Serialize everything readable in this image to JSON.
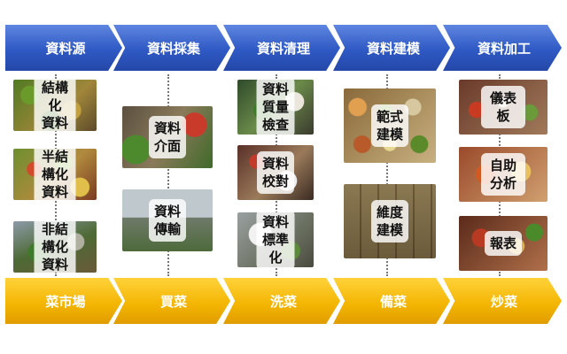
{
  "data_pipeline": [
    {
      "label": "資料源"
    },
    {
      "label": "資料採集"
    },
    {
      "label": "資料清理"
    },
    {
      "label": "資料建模"
    },
    {
      "label": "資料加工"
    }
  ],
  "cooking_pipeline": [
    {
      "label": "菜市場"
    },
    {
      "label": "買菜"
    },
    {
      "label": "洗菜"
    },
    {
      "label": "備菜"
    },
    {
      "label": "炒菜"
    }
  ],
  "columns": [
    {
      "items": [
        "結構化\n資料",
        "半結構化\n資料",
        "非結構化\n資料"
      ]
    },
    {
      "items": [
        "資料\n介面",
        "資料\n傳輸"
      ]
    },
    {
      "items": [
        "資料質量\n檢查",
        "資料\n校對",
        "資料\n標準化"
      ]
    },
    {
      "items": [
        "範式\n建模",
        "維度\n建模"
      ]
    },
    {
      "items": [
        "儀表板",
        "自助分析",
        "報表"
      ]
    }
  ],
  "colors": {
    "top_arrow": "#2f59c4",
    "bottom_arrow": "#f3b400",
    "connector": "#777777"
  }
}
